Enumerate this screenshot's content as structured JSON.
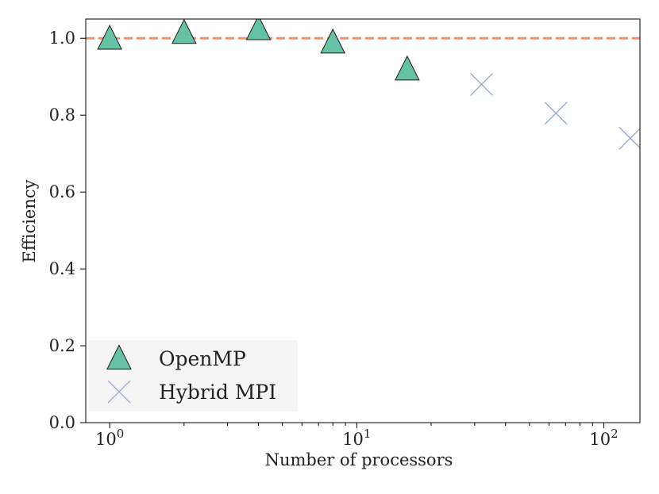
{
  "chart_data": {
    "type": "scatter",
    "xscale": "log",
    "xlim": [
      0.8,
      140
    ],
    "ylim": [
      0.0,
      1.05
    ],
    "xlabel": "Number of processors",
    "ylabel": "Efficiency",
    "x_ticks": [
      {
        "value": 1,
        "base": "10",
        "exp": "0"
      },
      {
        "value": 10,
        "base": "10",
        "exp": "1"
      },
      {
        "value": 100,
        "base": "10",
        "exp": "2"
      }
    ],
    "y_ticks": [
      {
        "value": 0.0,
        "label": "0.0"
      },
      {
        "value": 0.2,
        "label": "0.2"
      },
      {
        "value": 0.4,
        "label": "0.4"
      },
      {
        "value": 0.6,
        "label": "0.6"
      },
      {
        "value": 0.8,
        "label": "0.8"
      },
      {
        "value": 1.0,
        "label": "1.0"
      }
    ],
    "reference_line": {
      "y": 1.0,
      "color": "#fc8d62",
      "style": "dashed"
    },
    "series": [
      {
        "name": "OpenMP",
        "marker": "triangle",
        "color": "#66c2a5",
        "x": [
          1,
          2,
          4,
          8,
          16
        ],
        "y": [
          0.995,
          1.01,
          1.02,
          0.985,
          0.915
        ]
      },
      {
        "name": "Hybrid MPI",
        "marker": "x",
        "color": "#8da0cb",
        "x": [
          32,
          64,
          128
        ],
        "y": [
          0.88,
          0.805,
          0.74
        ]
      }
    ],
    "legend": {
      "position": "bottom-left",
      "entries": [
        "OpenMP",
        "Hybrid MPI"
      ]
    }
  }
}
